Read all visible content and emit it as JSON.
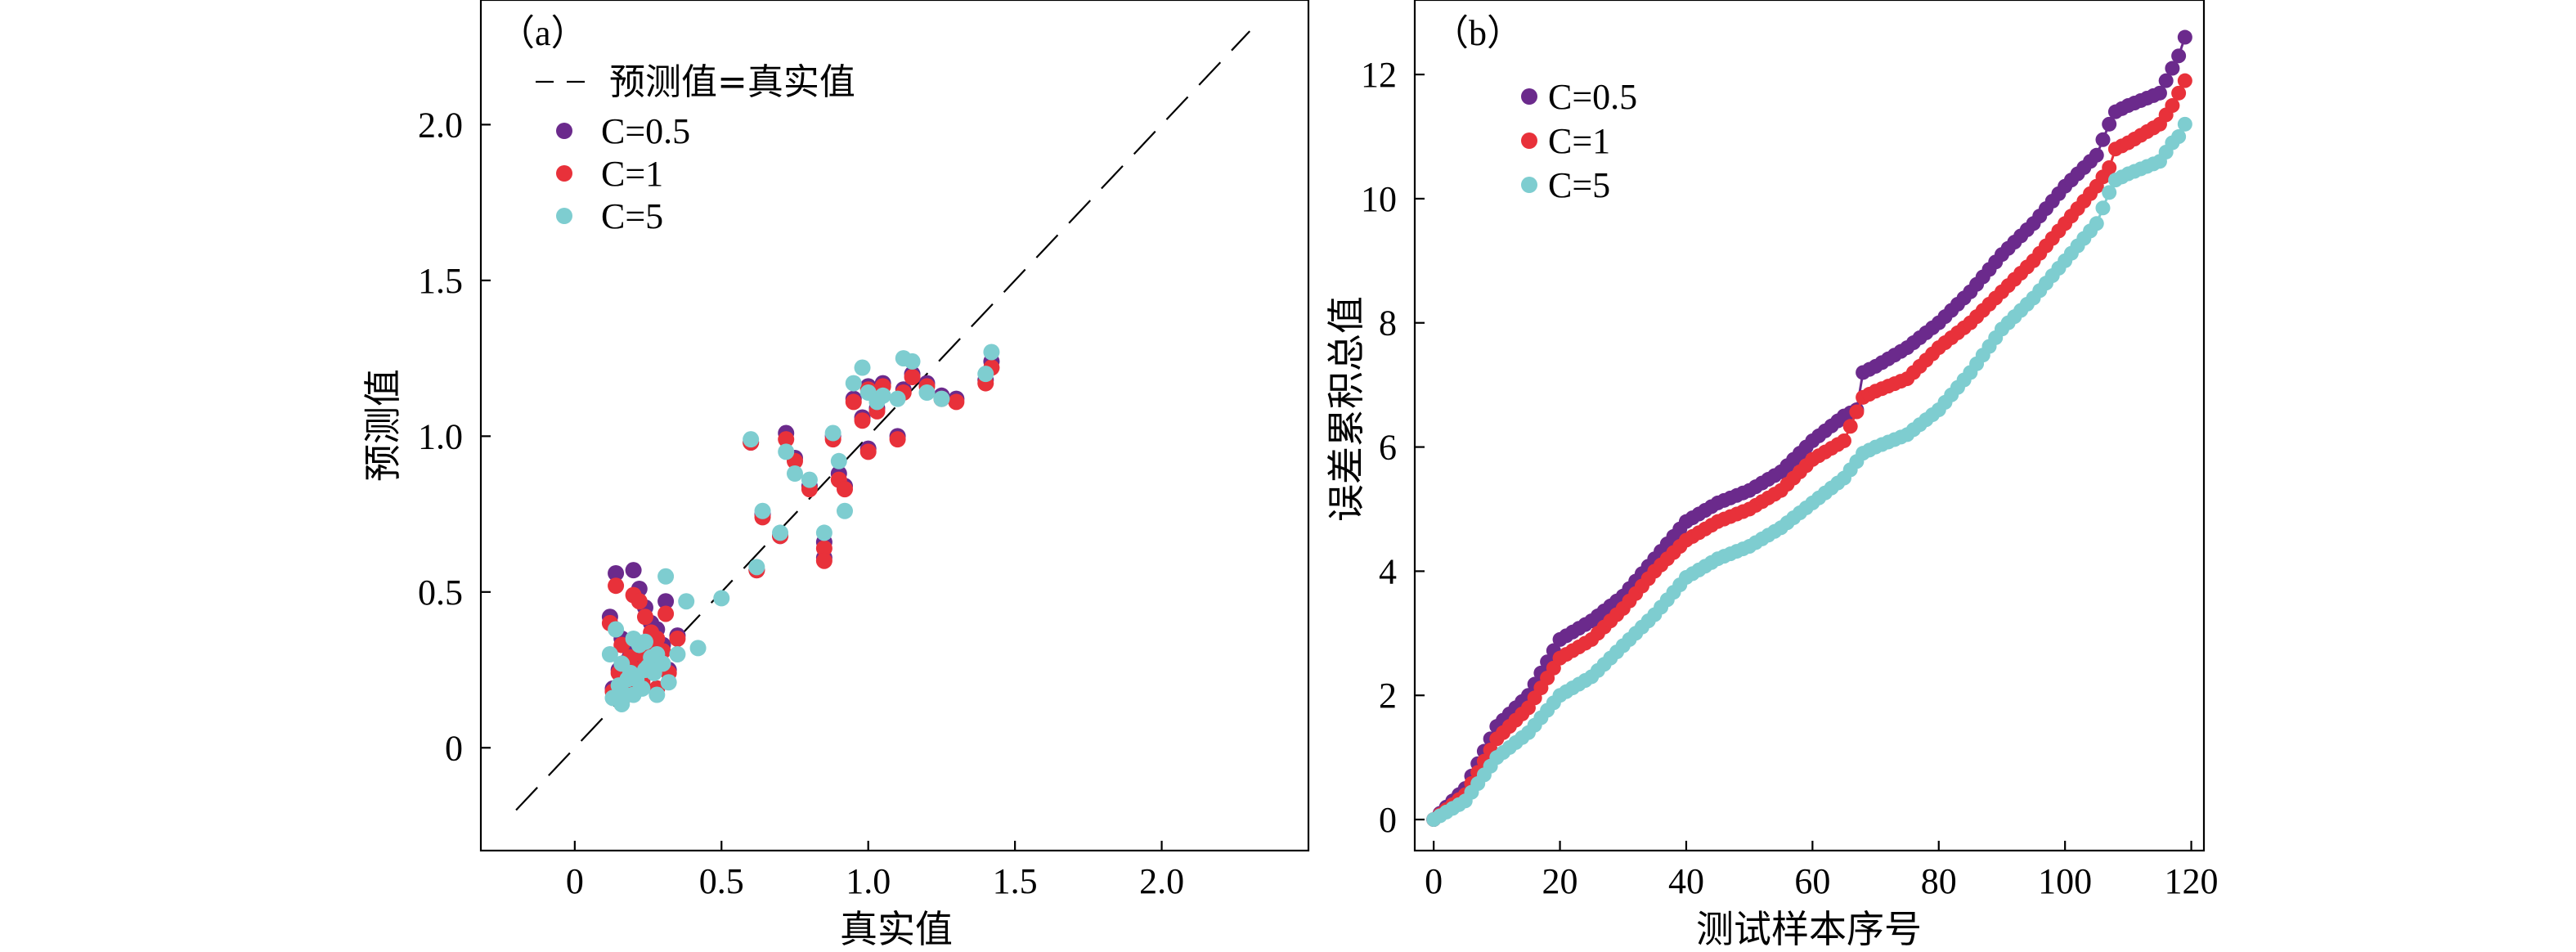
{
  "colors": {
    "c05": "#6b2a8c",
    "c1": "#e8313a",
    "c5": "#7ecdd0"
  },
  "chart_data": [
    {
      "type": "scatter",
      "panel_label": "（a）",
      "xlabel": "真实值",
      "ylabel": "预测值",
      "xlim": [
        -0.32,
        2.5
      ],
      "ylim": [
        -0.33,
        2.4
      ],
      "x_ticks": [
        "0",
        "0.5",
        "1.0",
        "1.5",
        "2.0"
      ],
      "y_ticks": [
        "0",
        "0.5",
        "1.0",
        "1.5",
        "2.0"
      ],
      "reference_line": {
        "label": "预测值=真实值",
        "style": "dashed",
        "from": [
          -0.2,
          -0.2
        ],
        "to": [
          2.3,
          2.3
        ]
      },
      "legend_position": "top-left",
      "series": [
        {
          "name": "C=0.5",
          "color": "#6b2a8c",
          "points": [
            [
              0.12,
              0.42
            ],
            [
              0.14,
              0.56
            ],
            [
              0.16,
              0.35
            ],
            [
              0.18,
              0.28
            ],
            [
              0.2,
              0.57
            ],
            [
              0.22,
              0.51
            ],
            [
              0.24,
              0.45
            ],
            [
              0.26,
              0.4
            ],
            [
              0.28,
              0.38
            ],
            [
              0.3,
              0.33
            ],
            [
              0.15,
              0.25
            ],
            [
              0.17,
              0.21
            ],
            [
              0.19,
              0.3
            ],
            [
              0.21,
              0.26
            ],
            [
              0.23,
              0.22
            ],
            [
              0.25,
              0.32
            ],
            [
              0.27,
              0.28
            ],
            [
              0.31,
              0.47
            ],
            [
              0.35,
              0.36
            ],
            [
              0.13,
              0.19
            ],
            [
              0.16,
              0.15
            ],
            [
              0.2,
              0.2
            ],
            [
              0.24,
              0.3
            ],
            [
              0.28,
              0.19
            ],
            [
              0.32,
              0.25
            ],
            [
              0.6,
              0.98
            ],
            [
              0.62,
              0.57
            ],
            [
              0.64,
              0.75
            ],
            [
              0.7,
              0.68
            ],
            [
              0.72,
              1.01
            ],
            [
              0.75,
              0.93
            ],
            [
              0.8,
              0.84
            ],
            [
              0.85,
              0.66
            ],
            [
              0.85,
              0.61
            ],
            [
              0.88,
              1.0
            ],
            [
              0.9,
              0.88
            ],
            [
              0.92,
              0.84
            ],
            [
              0.95,
              1.12
            ],
            [
              0.98,
              1.06
            ],
            [
              1.0,
              0.96
            ],
            [
              1.0,
              1.16
            ],
            [
              1.03,
              1.09
            ],
            [
              1.05,
              1.17
            ],
            [
              1.1,
              1.0
            ],
            [
              1.12,
              1.15
            ],
            [
              1.15,
              1.2
            ],
            [
              1.2,
              1.17
            ],
            [
              1.25,
              1.13
            ],
            [
              1.3,
              1.12
            ],
            [
              1.4,
              1.18
            ],
            [
              1.42,
              1.24
            ]
          ]
        },
        {
          "name": "C=1",
          "color": "#e8313a",
          "points": [
            [
              0.12,
              0.4
            ],
            [
              0.14,
              0.52
            ],
            [
              0.16,
              0.33
            ],
            [
              0.18,
              0.27
            ],
            [
              0.2,
              0.49
            ],
            [
              0.22,
              0.47
            ],
            [
              0.24,
              0.42
            ],
            [
              0.26,
              0.37
            ],
            [
              0.28,
              0.35
            ],
            [
              0.3,
              0.31
            ],
            [
              0.15,
              0.24
            ],
            [
              0.17,
              0.2
            ],
            [
              0.19,
              0.29
            ],
            [
              0.21,
              0.25
            ],
            [
              0.23,
              0.21
            ],
            [
              0.25,
              0.31
            ],
            [
              0.27,
              0.27
            ],
            [
              0.31,
              0.43
            ],
            [
              0.35,
              0.35
            ],
            [
              0.13,
              0.18
            ],
            [
              0.16,
              0.15
            ],
            [
              0.2,
              0.19
            ],
            [
              0.24,
              0.29
            ],
            [
              0.28,
              0.19
            ],
            [
              0.32,
              0.24
            ],
            [
              0.6,
              0.98
            ],
            [
              0.62,
              0.57
            ],
            [
              0.64,
              0.74
            ],
            [
              0.7,
              0.68
            ],
            [
              0.72,
              0.99
            ],
            [
              0.75,
              0.92
            ],
            [
              0.8,
              0.83
            ],
            [
              0.85,
              0.64
            ],
            [
              0.85,
              0.6
            ],
            [
              0.88,
              0.99
            ],
            [
              0.9,
              0.86
            ],
            [
              0.92,
              0.83
            ],
            [
              0.95,
              1.11
            ],
            [
              0.98,
              1.05
            ],
            [
              1.0,
              0.95
            ],
            [
              1.0,
              1.15
            ],
            [
              1.03,
              1.08
            ],
            [
              1.05,
              1.16
            ],
            [
              1.1,
              0.99
            ],
            [
              1.12,
              1.14
            ],
            [
              1.15,
              1.19
            ],
            [
              1.2,
              1.16
            ],
            [
              1.25,
              1.12
            ],
            [
              1.3,
              1.11
            ],
            [
              1.4,
              1.17
            ],
            [
              1.42,
              1.22
            ]
          ]
        },
        {
          "name": "C=5",
          "color": "#7ecdd0",
          "points": [
            [
              0.12,
              0.3
            ],
            [
              0.14,
              0.38
            ],
            [
              0.16,
              0.27
            ],
            [
              0.18,
              0.22
            ],
            [
              0.2,
              0.35
            ],
            [
              0.22,
              0.33
            ],
            [
              0.24,
              0.34
            ],
            [
              0.26,
              0.29
            ],
            [
              0.28,
              0.3
            ],
            [
              0.3,
              0.27
            ],
            [
              0.15,
              0.2
            ],
            [
              0.17,
              0.17
            ],
            [
              0.19,
              0.24
            ],
            [
              0.21,
              0.22
            ],
            [
              0.23,
              0.19
            ],
            [
              0.25,
              0.26
            ],
            [
              0.27,
              0.24
            ],
            [
              0.31,
              0.55
            ],
            [
              0.35,
              0.3
            ],
            [
              0.13,
              0.16
            ],
            [
              0.16,
              0.14
            ],
            [
              0.2,
              0.17
            ],
            [
              0.24,
              0.25
            ],
            [
              0.28,
              0.17
            ],
            [
              0.32,
              0.21
            ],
            [
              0.38,
              0.47
            ],
            [
              0.42,
              0.32
            ],
            [
              0.5,
              0.48
            ],
            [
              0.6,
              0.99
            ],
            [
              0.62,
              0.58
            ],
            [
              0.64,
              0.76
            ],
            [
              0.7,
              0.69
            ],
            [
              0.72,
              0.95
            ],
            [
              0.75,
              0.88
            ],
            [
              0.8,
              0.86
            ],
            [
              0.85,
              0.69
            ],
            [
              0.88,
              1.01
            ],
            [
              0.9,
              0.92
            ],
            [
              0.92,
              0.76
            ],
            [
              0.95,
              1.17
            ],
            [
              0.98,
              1.22
            ],
            [
              1.0,
              1.14
            ],
            [
              1.03,
              1.11
            ],
            [
              1.05,
              1.13
            ],
            [
              1.1,
              1.12
            ],
            [
              1.12,
              1.25
            ],
            [
              1.15,
              1.24
            ],
            [
              1.2,
              1.14
            ],
            [
              1.25,
              1.12
            ],
            [
              1.4,
              1.2
            ],
            [
              1.42,
              1.27
            ]
          ]
        }
      ]
    },
    {
      "type": "line",
      "panel_label": "（b）",
      "xlabel": "测试样本序号",
      "ylabel": "误差累积总值",
      "xlim": [
        -3,
        122
      ],
      "ylim": [
        -0.5,
        13.2
      ],
      "x_ticks": [
        0,
        20,
        40,
        60,
        80,
        100,
        120
      ],
      "y_ticks": [
        0,
        2,
        4,
        6,
        8,
        10,
        12
      ],
      "markers": true,
      "legend_position": "top-left",
      "series": [
        {
          "name": "C=0.5",
          "color": "#6b2a8c",
          "x": [
            0,
            5,
            10,
            15,
            20,
            25,
            30,
            35,
            40,
            45,
            50,
            55,
            60,
            65,
            67,
            68,
            70,
            75,
            80,
            85,
            90,
            95,
            100,
            105,
            107,
            108,
            110,
            115,
            117,
            118,
            119
          ],
          "y": [
            0,
            0.5,
            1.5,
            2.0,
            2.9,
            3.2,
            3.6,
            4.2,
            4.8,
            5.1,
            5.3,
            5.6,
            6.1,
            6.5,
            6.6,
            7.2,
            7.3,
            7.6,
            8.0,
            8.5,
            9.1,
            9.6,
            10.2,
            10.7,
            11.2,
            11.4,
            11.5,
            11.7,
            12.1,
            12.3,
            12.6
          ]
        },
        {
          "name": "C=1",
          "color": "#e8313a",
          "x": [
            0,
            5,
            10,
            15,
            20,
            25,
            30,
            35,
            40,
            45,
            50,
            55,
            60,
            65,
            68,
            70,
            75,
            80,
            85,
            90,
            95,
            100,
            105,
            107,
            108,
            110,
            115,
            117,
            118,
            119
          ],
          "y": [
            0,
            0.4,
            1.3,
            1.8,
            2.6,
            2.9,
            3.4,
            4.0,
            4.5,
            4.8,
            5.0,
            5.3,
            5.8,
            6.1,
            6.8,
            6.9,
            7.1,
            7.6,
            8.0,
            8.5,
            9.0,
            9.6,
            10.2,
            10.5,
            10.8,
            10.9,
            11.2,
            11.5,
            11.7,
            11.9
          ]
        },
        {
          "name": "C=5",
          "color": "#7ecdd0",
          "x": [
            0,
            5,
            10,
            15,
            20,
            25,
            30,
            35,
            40,
            45,
            50,
            55,
            60,
            65,
            68,
            70,
            75,
            80,
            85,
            90,
            95,
            100,
            105,
            107,
            108,
            110,
            115,
            117,
            118,
            119
          ],
          "y": [
            0,
            0.3,
            1.0,
            1.4,
            2.0,
            2.3,
            2.8,
            3.3,
            3.9,
            4.2,
            4.4,
            4.7,
            5.1,
            5.5,
            5.9,
            6.0,
            6.2,
            6.6,
            7.2,
            7.9,
            8.4,
            9.0,
            9.6,
            10.1,
            10.3,
            10.4,
            10.6,
            10.9,
            11.0,
            11.2
          ]
        }
      ]
    }
  ]
}
